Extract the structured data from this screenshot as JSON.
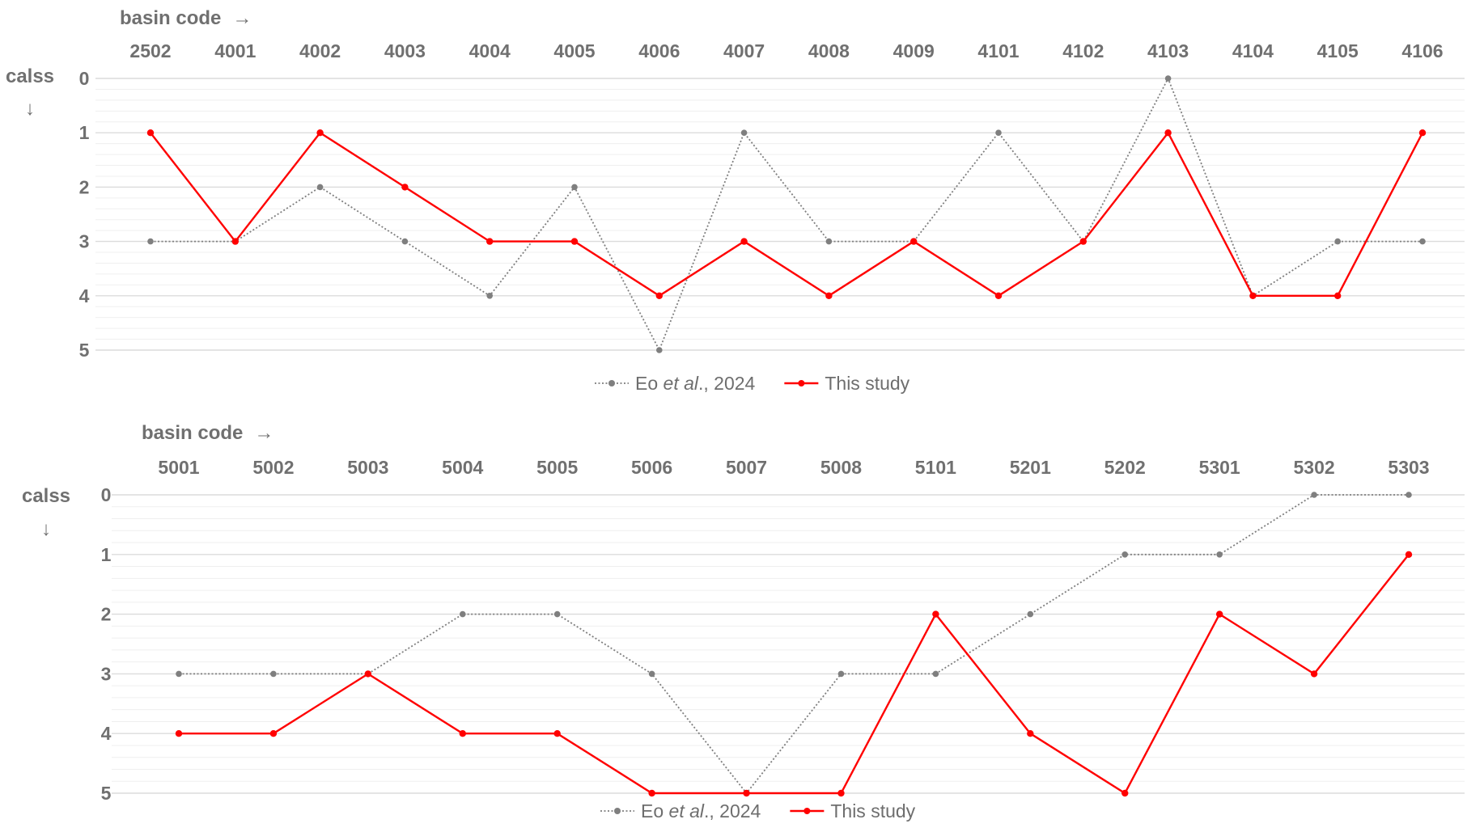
{
  "chart_data": [
    {
      "type": "line",
      "xlabel": "basin code",
      "xlabel_arrow": "→",
      "ylabel": "calss",
      "ylabel_arrow": "↓",
      "categories": [
        "2502",
        "4001",
        "4002",
        "4003",
        "4004",
        "4005",
        "4006",
        "4007",
        "4008",
        "4009",
        "4101",
        "4102",
        "4103",
        "4104",
        "4105",
        "4106"
      ],
      "ylim": [
        0,
        5
      ],
      "y_inverted": true,
      "yticks": [
        "0",
        "1",
        "2",
        "3",
        "4",
        "5"
      ],
      "legend_position": "bottom",
      "series": [
        {
          "name_plain": "Eo ",
          "name_italic": "et al",
          "name_tail": "., 2024",
          "values": [
            3,
            3,
            2,
            3,
            4,
            2,
            5,
            1,
            3,
            3,
            1,
            3,
            0,
            4,
            3,
            3
          ],
          "color": "#7f7f7f",
          "style": "dotted"
        },
        {
          "name": "This study",
          "values": [
            1,
            3,
            1,
            2,
            3,
            3,
            4,
            3,
            4,
            3,
            4,
            3,
            1,
            4,
            4,
            1
          ],
          "color": "#ff0000",
          "style": "solid"
        }
      ]
    },
    {
      "type": "line",
      "xlabel": "basin code",
      "xlabel_arrow": "→",
      "ylabel": "calss",
      "ylabel_arrow": "↓",
      "categories": [
        "5001",
        "5002",
        "5003",
        "5004",
        "5005",
        "5006",
        "5007",
        "5008",
        "5101",
        "5201",
        "5202",
        "5301",
        "5302",
        "5303"
      ],
      "ylim": [
        0,
        5
      ],
      "y_inverted": true,
      "yticks": [
        "0",
        "1",
        "2",
        "3",
        "4",
        "5"
      ],
      "legend_position": "bottom",
      "series": [
        {
          "name_plain": "Eo ",
          "name_italic": "et al",
          "name_tail": "., 2024",
          "values": [
            3,
            3,
            3,
            2,
            2,
            3,
            5,
            3,
            3,
            2,
            1,
            1,
            0,
            0
          ],
          "color": "#7f7f7f",
          "style": "dotted"
        },
        {
          "name": "This study",
          "values": [
            4,
            4,
            3,
            4,
            4,
            5,
            5,
            5,
            2,
            4,
            5,
            2,
            3,
            1
          ],
          "color": "#ff0000",
          "style": "solid"
        }
      ]
    }
  ]
}
